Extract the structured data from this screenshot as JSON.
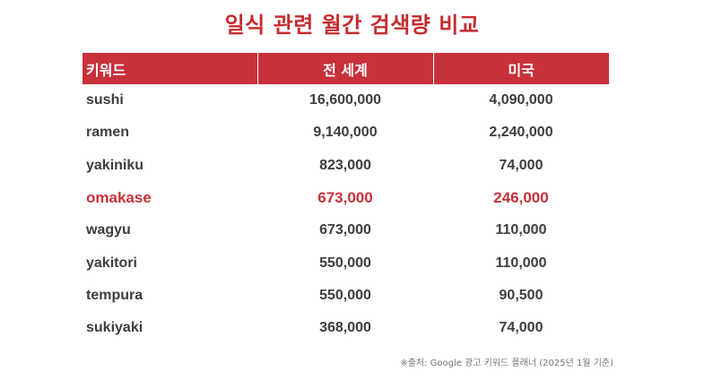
{
  "title": "일식 관련 월간 검색량 비교",
  "table": {
    "headers": {
      "keyword": "키워드",
      "global": "전 세계",
      "us": "미국"
    },
    "rows": [
      {
        "keyword": "sushi",
        "global": "16,600,000",
        "us": "4,090,000"
      },
      {
        "keyword": "ramen",
        "global": "9,140,000",
        "us": "2,240,000"
      },
      {
        "keyword": "yakiniku",
        "global": "823,000",
        "us": "74,000"
      },
      {
        "keyword": "omakase",
        "global": "673,000",
        "us": "246,000"
      },
      {
        "keyword": "wagyu",
        "global": "673,000",
        "us": "110,000"
      },
      {
        "keyword": "yakitori",
        "global": "550,000",
        "us": "110,000"
      },
      {
        "keyword": "tempura",
        "global": "550,000",
        "us": "90,500"
      },
      {
        "keyword": "sukiyaki",
        "global": "368,000",
        "us": "74,000"
      }
    ],
    "highlight_row": "omakase"
  },
  "source": "※출처: Google 광고 키워드 플래너 (2025년 1월 기준)",
  "colors": {
    "accent": "#c8313a",
    "title": "#c52b2f",
    "text": "#3d3d3d",
    "note": "#777777"
  }
}
